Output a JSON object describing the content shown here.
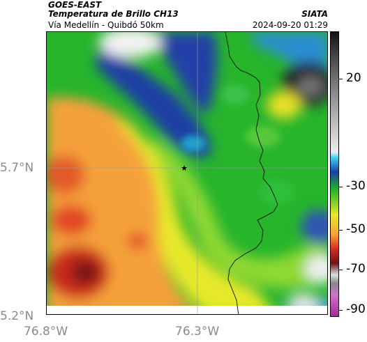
{
  "header": {
    "satellite": "GOES-EAST",
    "title": "Temperatura de Brillo CH13",
    "subtitle": "Vía Medellín - Quibdó 50km",
    "organization": "SIATA",
    "datetime": "2024-09-20 01:29"
  },
  "map": {
    "latitude_labels": [
      "5.7°N",
      "5.2°N"
    ],
    "longitude_labels": [
      "76.8°W",
      "76.3°W"
    ],
    "marker_icon": "star-icon"
  },
  "colorbar": {
    "tick_labels": [
      "20",
      "-30",
      "-50",
      "-70",
      "-90"
    ],
    "tick_values": [
      20,
      -30,
      -50,
      -70,
      -90
    ],
    "range": [
      -95,
      45
    ]
  }
}
